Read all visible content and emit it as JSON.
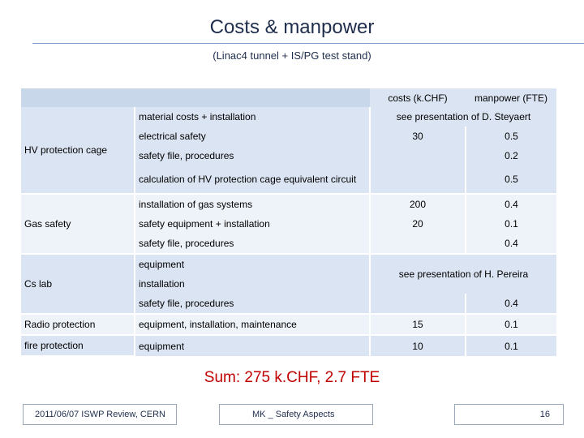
{
  "title": "Costs & manpower",
  "subtitle": "(Linac4 tunnel + IS/PG test stand)",
  "table": {
    "headers": {
      "costs": "costs (k.CHF)",
      "manpower": "manpower (FTE)"
    },
    "groups": {
      "hv": "HV protection cage",
      "gas": "Gas safety",
      "cs": "Cs lab",
      "radio": "Radio protection",
      "fire": "fire protection"
    },
    "rows": {
      "hv_material": "material costs + installation",
      "hv_electrical": "electrical safety",
      "hv_file": "safety file, procedures",
      "hv_calc": "calculation of HV protection cage equivalent circuit",
      "hv_see": "see presentation of D. Steyaert",
      "hv_cost": "30",
      "hv_fte1": "0.5",
      "hv_fte2": "0.2",
      "hv_fte3": "0.5",
      "gas_install": "installation of gas systems",
      "gas_equip": "safety equipment + installation",
      "gas_file": "safety file, procedures",
      "gas_cost1": "200",
      "gas_fte1": "0.4",
      "gas_cost2": "20",
      "gas_fte2": "0.1",
      "gas_fte3": "0.4",
      "cs_equip": "equipment",
      "cs_install": "installation",
      "cs_file": "safety file, procedures",
      "cs_see": "see presentation of H. Pereira",
      "cs_fte": "0.4",
      "radio_item": "equipment, installation, maintenance",
      "radio_cost": "15",
      "radio_fte": "0.1",
      "fire_item": "equipment",
      "fire_cost": "10",
      "fire_fte": "0.1"
    }
  },
  "sum": "Sum: 275 k.CHF, 2.7 FTE",
  "footer": {
    "date": "2011/06/07   ISWP Review, CERN",
    "center": "MK _ Safety Aspects",
    "page": "16"
  }
}
